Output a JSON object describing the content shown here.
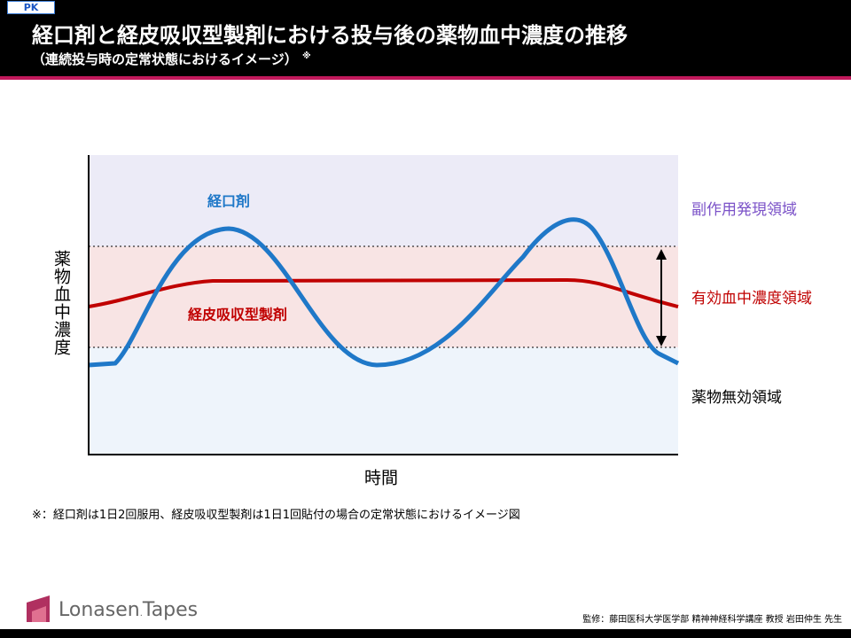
{
  "header": {
    "tag": "PK",
    "title": "経口剤と経皮吸収型製剤における投与後の薬物血中濃度の推移",
    "subtitle": "（連続投与時の定常状態におけるイメージ）",
    "subtitle_mark": "※"
  },
  "chart": {
    "y_label": "薬物血中濃度",
    "x_label": "時間",
    "series_labels": [
      "経口剤",
      "経皮吸収型製剤"
    ],
    "zones": [
      "副作用発現領域",
      "有効血中濃度領域",
      "薬物無効領域"
    ]
  },
  "footnote": "※：経口剤は1日2回服用、経皮吸収型製剤は1日1回貼付の場合の定常状態におけるイメージ図",
  "logo": {
    "name": "Lonasen",
    "suffix": "Tapes"
  },
  "credit": "監修：藤田医科大学医学部 精神神経科学講座 教授 岩田仲生 先生"
}
